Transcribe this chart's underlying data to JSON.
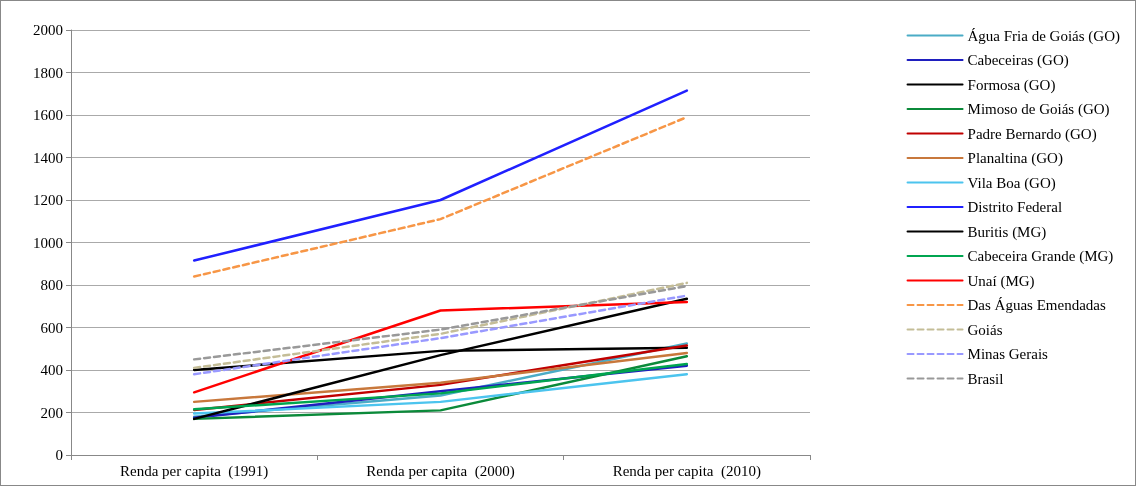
{
  "chart_data": {
    "type": "line",
    "categories": [
      "Renda per capita  (1991)",
      "Renda per capita  (2000)",
      "Renda per capita  (2010)"
    ],
    "ylim": [
      0,
      2000
    ],
    "yticks": [
      0,
      200,
      400,
      600,
      800,
      1000,
      1200,
      1400,
      1600,
      1800,
      2000
    ],
    "grid": "y",
    "legend": "right",
    "marker": "none",
    "series": [
      {
        "name": "Água Fria de Goiás (GO)",
        "color": "#4bacc6",
        "values": [
          180,
          280,
          525
        ]
      },
      {
        "name": "Cabeceiras (GO)",
        "color": "#1f1fbf",
        "values": [
          175,
          300,
          420
        ]
      },
      {
        "name": "Formosa (GO)",
        "color": "#000000",
        "values": [
          400,
          490,
          505
        ]
      },
      {
        "name": "Mimoso de Goiás (GO)",
        "color": "#0b8a3a",
        "values": [
          170,
          210,
          465
        ]
      },
      {
        "name": "Padre Bernardo (GO)",
        "color": "#c00000",
        "values": [
          212,
          330,
          515
        ]
      },
      {
        "name": "Planaltina (GO)",
        "color": "#c8783c",
        "values": [
          250,
          340,
          480
        ]
      },
      {
        "name": "Vila Boa (GO)",
        "color": "#4cc4ee",
        "values": [
          195,
          250,
          380
        ]
      },
      {
        "name": "Distrito Federal",
        "color": "#2020ff",
        "values": [
          915,
          1200,
          1715
        ]
      },
      {
        "name": "Buritis (MG)",
        "color": "#000000",
        "values": [
          170,
          470,
          735
        ]
      },
      {
        "name": "Cabeceira Grande (MG)",
        "color": "#00a550",
        "values": [
          215,
          290,
          428
        ]
      },
      {
        "name": "Unaí (MG)",
        "color": "#ff0000",
        "values": [
          295,
          680,
          720
        ]
      },
      {
        "name": "Das Águas Emendadas",
        "color": "#f79646",
        "line_style": "dashed",
        "values": [
          840,
          1110,
          1590
        ]
      },
      {
        "name": "Goiás",
        "color": "#c4bd97",
        "line_style": "dashed",
        "values": [
          410,
          570,
          810
        ]
      },
      {
        "name": "Minas Gerais",
        "color": "#9999ff",
        "line_style": "dashed",
        "values": [
          380,
          550,
          750
        ]
      },
      {
        "name": "Brasil",
        "color": "#999999",
        "line_style": "dashed",
        "values": [
          450,
          590,
          795
        ]
      }
    ]
  }
}
